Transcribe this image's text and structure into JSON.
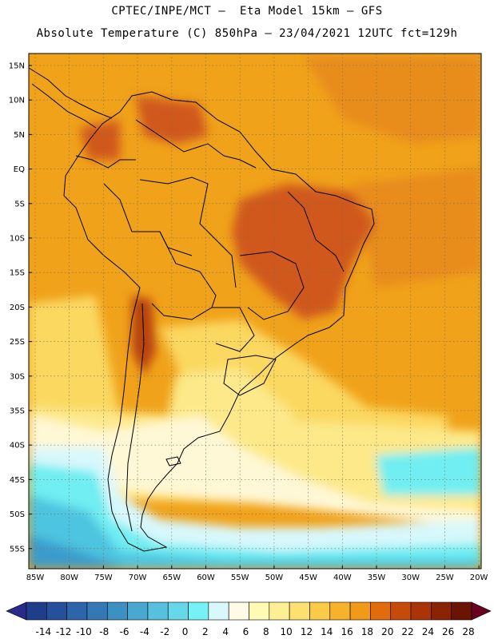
{
  "header": {
    "line1": "CPTEC/INPE/MCT –  Eta Model 15km – GFS",
    "line2": "Absolute Temperature (C) 850hPa – 23/04/2021 12UTC fct=129h"
  },
  "axes": {
    "lat_labels": [
      "15N",
      "10N",
      "5N",
      "EQ",
      "5S",
      "10S",
      "15S",
      "20S",
      "25S",
      "30S",
      "35S",
      "40S",
      "45S",
      "50S",
      "55S"
    ],
    "lon_labels": [
      "85W",
      "80W",
      "75W",
      "70W",
      "65W",
      "60W",
      "55W",
      "50W",
      "45W",
      "40W",
      "35W",
      "30W",
      "25W",
      "20W"
    ]
  },
  "colorbar": {
    "labels": [
      "-14",
      "-12",
      "-10",
      "-8",
      "-6",
      "-4",
      "-2",
      "0",
      "2",
      "4",
      "6",
      "8",
      "10",
      "12",
      "14",
      "16",
      "18",
      "20",
      "22",
      "24",
      "26",
      "28"
    ],
    "colors": [
      "#1e3e8c",
      "#25519c",
      "#2d64aa",
      "#3479b6",
      "#3c90c2",
      "#48a8d0",
      "#56c0de",
      "#66d8ea",
      "#76f2f6",
      "#d8f8fc",
      "#fffbe6",
      "#fffab4",
      "#fdef94",
      "#fce070",
      "#f9cb48",
      "#f5b22a",
      "#f09a18",
      "#e06c0e",
      "#c84a0a",
      "#aa3406",
      "#8a2204",
      "#6c1404"
    ],
    "under_color": "#2a2a88",
    "over_color": "#6a0020"
  },
  "field_colors": {
    "ocean_hot": "#f0a21a",
    "ocean_warm": "#e88c1e",
    "land_hot": "#d0581a",
    "land_mid": "#f2ac24",
    "cool_a": "#fbd860",
    "cool_b": "#fde98a",
    "pale": "#fff8d6",
    "cold_a": "#d8f8fc",
    "cold_b": "#70eef2",
    "cold_c": "#4ec4e0",
    "cold_d": "#3a9ccc",
    "andes": "#b84210"
  }
}
